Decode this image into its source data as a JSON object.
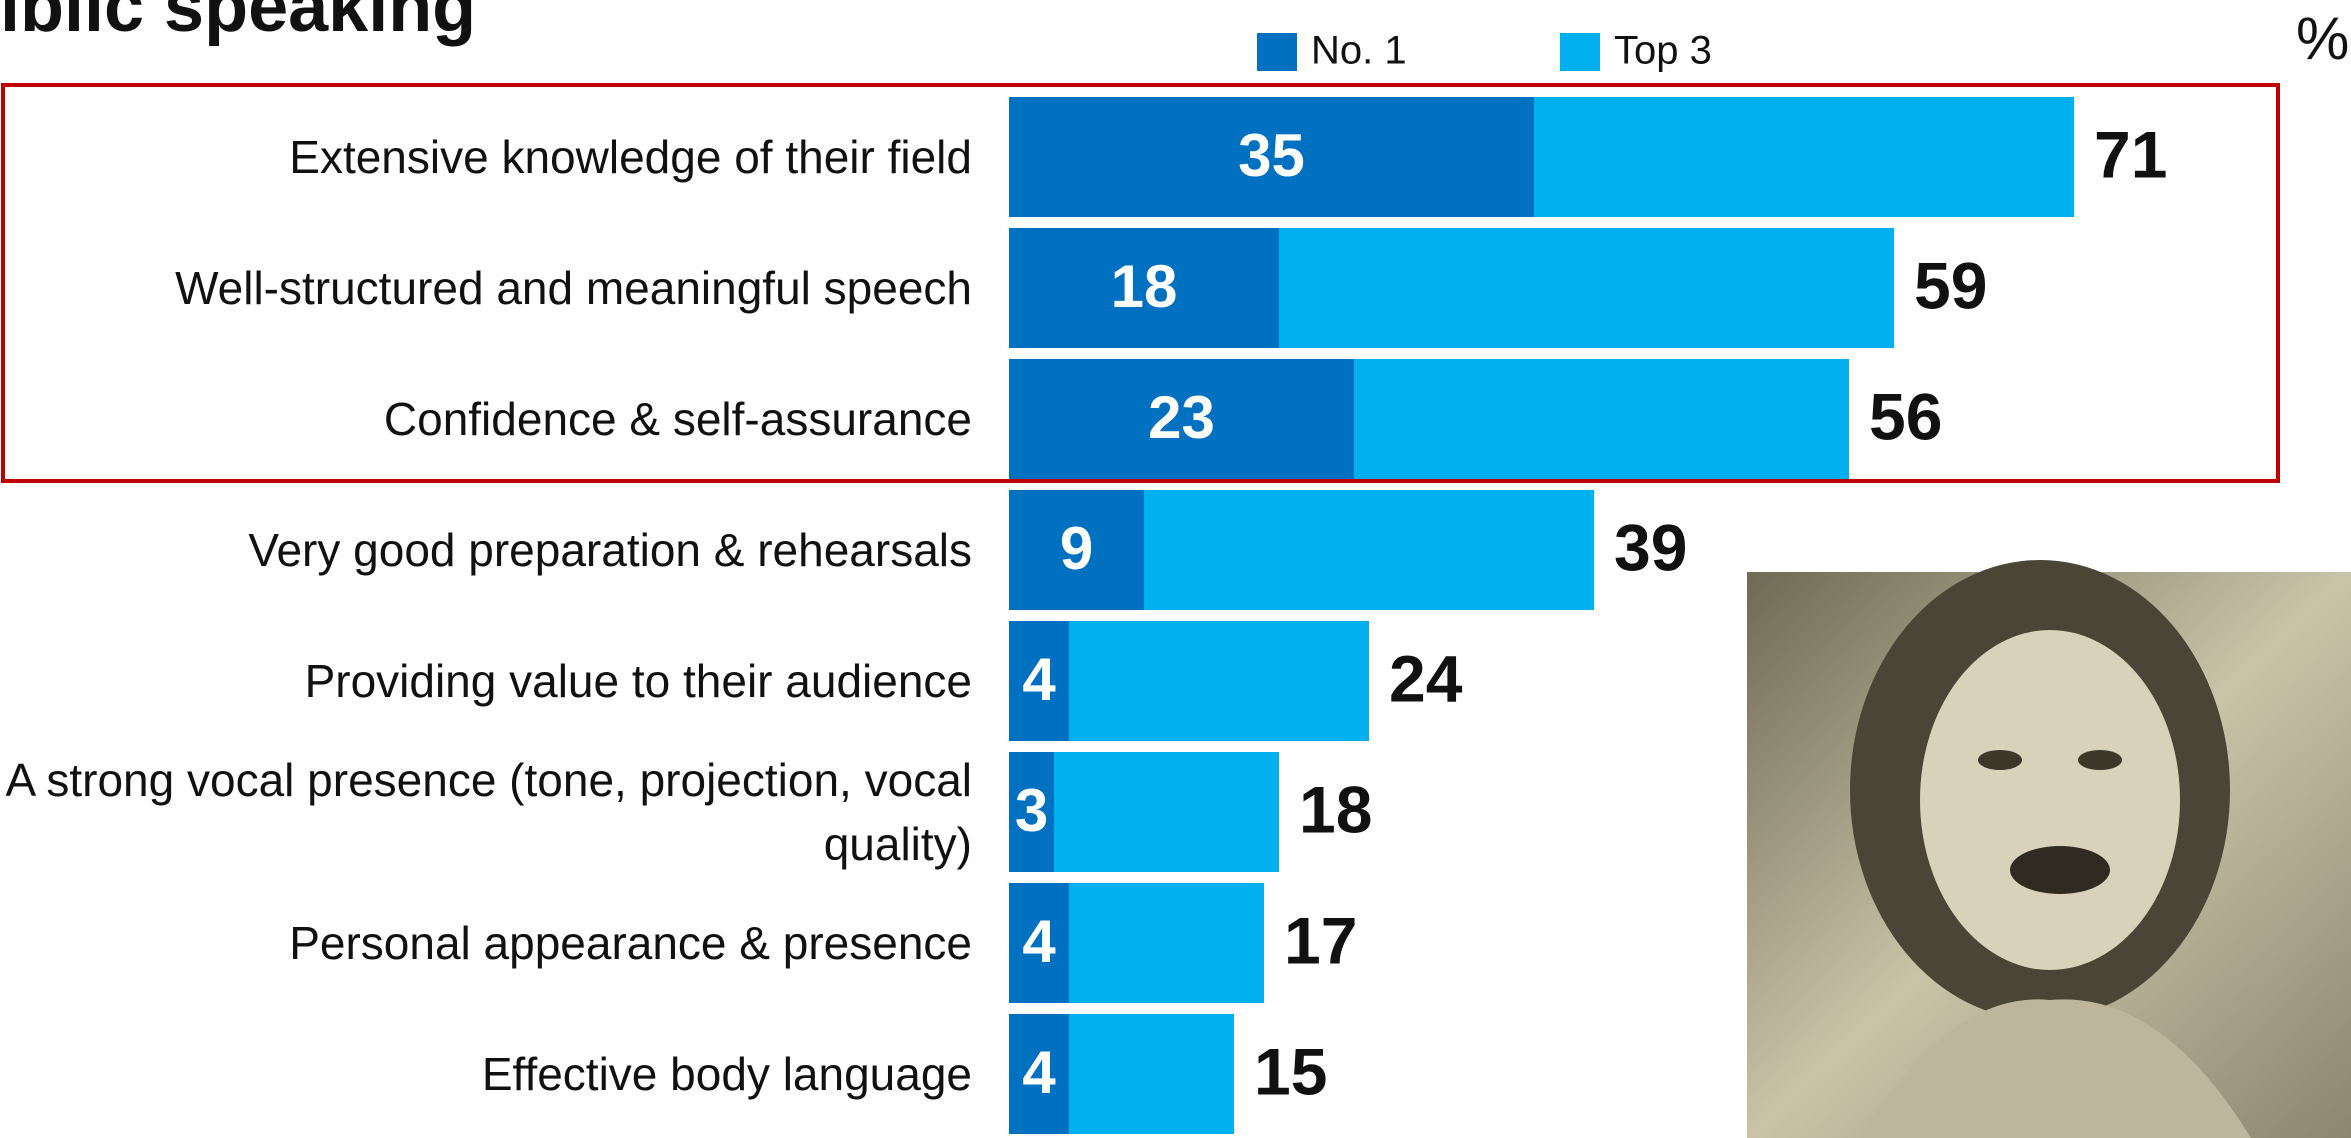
{
  "chart_data": {
    "type": "bar",
    "orientation": "horizontal",
    "overlap": true,
    "title": "iblic speaking",
    "unit": "%",
    "categories": [
      "Extensive knowledge of their field",
      "Well-structured and meaningful speech",
      "Confidence & self-assurance",
      "Very good preparation & rehearsals",
      "Providing value to their audience",
      "A strong vocal presence (tone, projection, vocal quality)",
      "Personal appearance & presence",
      "Effective body language"
    ],
    "series": [
      {
        "name": "No. 1",
        "color": "#0070c0",
        "values": [
          35,
          18,
          23,
          9,
          4,
          3,
          4,
          4
        ]
      },
      {
        "name": "Top 3",
        "color": "#00b0f0",
        "values": [
          71,
          59,
          56,
          39,
          24,
          18,
          17,
          15
        ]
      }
    ]
  }
}
